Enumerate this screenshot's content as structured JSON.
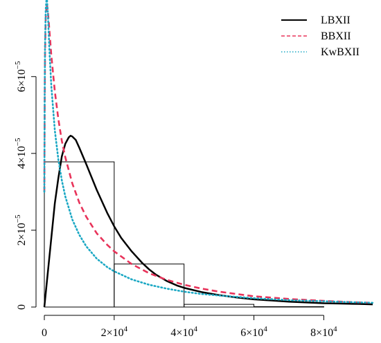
{
  "chart_data": {
    "type": "line",
    "title": "",
    "xlabel": "",
    "ylabel": "",
    "xlim": [
      0,
      94000
    ],
    "ylim": [
      0,
      7.85e-05
    ],
    "x_ticks": [
      {
        "value": 0,
        "label": "0"
      },
      {
        "value": 20000,
        "label": "2×10^4"
      },
      {
        "value": 40000,
        "label": "4×10^4"
      },
      {
        "value": 60000,
        "label": "6×10^4"
      },
      {
        "value": 80000,
        "label": "8×10^4"
      }
    ],
    "y_ticks": [
      {
        "value": 0,
        "label": "0"
      },
      {
        "value": 2e-05,
        "label": "2×10^−5"
      },
      {
        "value": 4e-05,
        "label": "4×10^−5"
      },
      {
        "value": 6e-05,
        "label": "6×10^−5"
      }
    ],
    "histogram": {
      "bin_edges": [
        0,
        20000,
        40000,
        60000,
        80000
      ],
      "densities": [
        3.78e-05,
        1.12e-05,
        7e-07,
        1e-07
      ]
    },
    "series": [
      {
        "name": "LBXII",
        "color": "#000000",
        "style": "solid",
        "x": [
          0,
          500,
          1000,
          2000,
          3000,
          4000,
          5000,
          6000,
          7000,
          7500,
          8000,
          9000,
          10000,
          12000,
          15000,
          18000,
          20000,
          22000,
          25000,
          28000,
          30000,
          32000,
          35000,
          38000,
          40000,
          45000,
          50000,
          55000,
          60000,
          65000,
          70000,
          75000,
          80000,
          85000,
          90000,
          94000
        ],
        "y": [
          0,
          4.5e-06,
          9e-06,
          1.8e-05,
          2.7e-05,
          3.35e-05,
          3.92e-05,
          4.25e-05,
          4.42e-05,
          4.46e-05,
          4.44e-05,
          4.35e-05,
          4.15e-05,
          3.72e-05,
          3.05e-05,
          2.45e-05,
          2.1e-05,
          1.8e-05,
          1.45e-05,
          1.15e-05,
          9.8e-06,
          8.4e-06,
          6.8e-06,
          5.6e-06,
          5e-06,
          3.9e-06,
          3.1e-06,
          2.5e-06,
          2e-06,
          1.7e-06,
          1.4e-06,
          1.2e-06,
          1e-06,
          9e-07,
          8e-07,
          7e-07
        ]
      },
      {
        "name": "BBXII",
        "color": "#e8335a",
        "style": "dashed",
        "x": [
          0,
          100,
          200,
          400,
          700,
          1000,
          1500,
          2000,
          3000,
          4000,
          5000,
          6000,
          8000,
          10000,
          12000,
          15000,
          18000,
          20000,
          25000,
          30000,
          35000,
          40000,
          45000,
          50000,
          60000,
          70000,
          80000,
          90000,
          94000
        ],
        "y": [
          3e-05,
          5.2e-05,
          6.6e-05,
          7.55e-05,
          7.9e-05,
          7.72e-05,
          7.15e-05,
          6.55e-05,
          5.62e-05,
          4.9e-05,
          4.33e-05,
          3.9e-05,
          3.22e-05,
          2.72e-05,
          2.35e-05,
          1.92e-05,
          1.62e-05,
          1.45e-05,
          1.12e-05,
          8.8e-06,
          7.1e-06,
          5.8e-06,
          4.8e-06,
          4e-06,
          2.8e-06,
          2.1e-06,
          1.6e-06,
          1.2e-06,
          1.1e-06
        ]
      },
      {
        "name": "KwBXII",
        "color": "#1ba8c4",
        "style": "dotted",
        "x": [
          0,
          100,
          200,
          400,
          700,
          1000,
          1500,
          2000,
          3000,
          4000,
          5000,
          6000,
          8000,
          10000,
          12000,
          15000,
          18000,
          20000,
          25000,
          30000,
          35000,
          40000,
          45000,
          50000,
          60000,
          70000,
          80000,
          90000,
          94000
        ],
        "y": [
          3e-05,
          5.5e-05,
          6.8e-05,
          7.75e-05,
          8.1e-05,
          7.65e-05,
          6.6e-05,
          5.75e-05,
          4.6e-05,
          3.85e-05,
          3.3e-05,
          2.88e-05,
          2.28e-05,
          1.88e-05,
          1.58e-05,
          1.26e-05,
          1.04e-05,
          9.3e-06,
          7.2e-06,
          5.8e-06,
          4.8e-06,
          4e-06,
          3.4e-06,
          3e-06,
          2.3e-06,
          1.8e-06,
          1.5e-06,
          1.2e-06,
          1.1e-06
        ]
      }
    ],
    "legend": {
      "position": "top-right",
      "entries": [
        {
          "label": "LBXII",
          "color": "#000000",
          "style": "solid"
        },
        {
          "label": "BBXII",
          "color": "#e8335a",
          "style": "dashed"
        },
        {
          "label": "KwBXII",
          "color": "#1ba8c4",
          "style": "dotted"
        }
      ]
    },
    "grid": false
  }
}
